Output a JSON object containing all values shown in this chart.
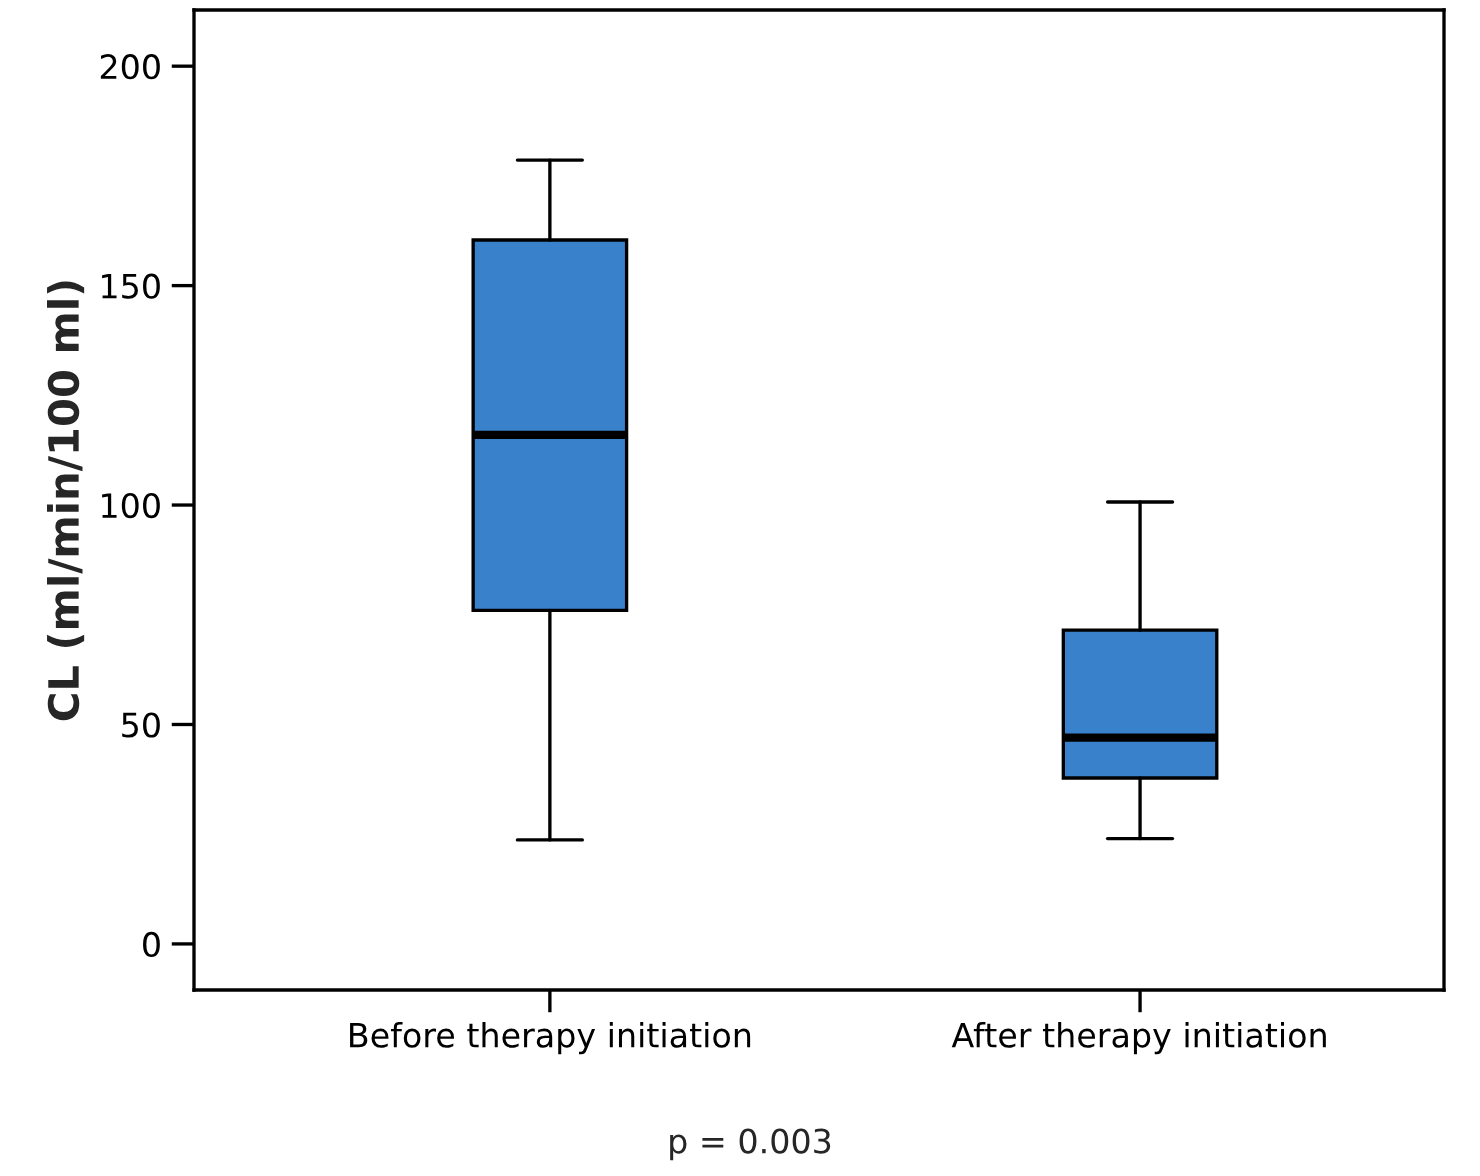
{
  "chart_data": {
    "type": "box",
    "ylabel": "CL (ml/min/100 ml)",
    "categories": [
      "Before therapy initiation",
      "After therapy initiation"
    ],
    "color": "#3a81cc",
    "boxes": [
      {
        "low": 23.7,
        "q1": 76,
        "median": 116,
        "q3": 160.4,
        "high": 178.6
      },
      {
        "low": 24,
        "q1": 37.8,
        "median": 47,
        "q3": 71.5,
        "high": 100.7
      }
    ],
    "ylim": [
      -10.5,
      212.8
    ],
    "yticks": [
      0,
      50,
      100,
      150,
      200
    ],
    "grid": false,
    "legend": false,
    "annotations": [
      "p = 0.003"
    ]
  }
}
